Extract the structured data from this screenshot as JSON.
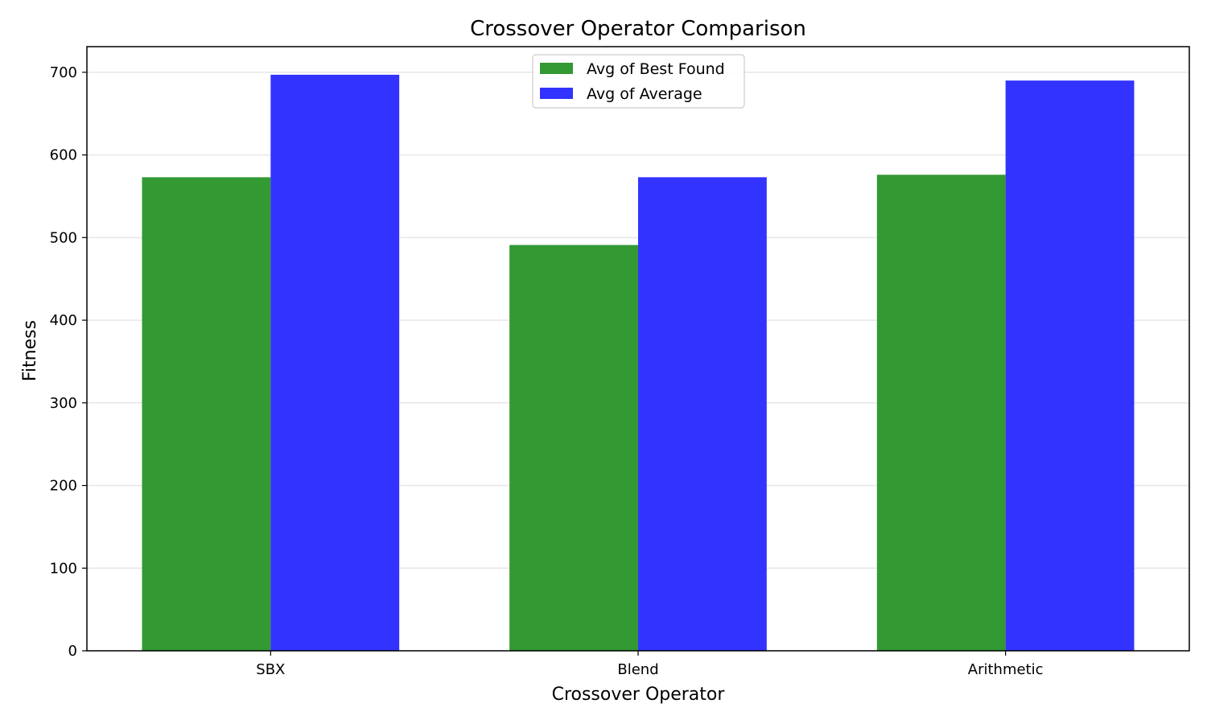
{
  "chart_data": {
    "type": "bar",
    "title": "Crossover Operator Comparison",
    "xlabel": "Crossover Operator",
    "ylabel": "Fitness",
    "categories": [
      "SBX",
      "Blend",
      "Arithmetic"
    ],
    "series": [
      {
        "name": "Avg of Best Found",
        "values": [
          573,
          491,
          576
        ],
        "color": "#339933"
      },
      {
        "name": "Avg of Average",
        "values": [
          697,
          573,
          690
        ],
        "color": "#3333ff"
      }
    ],
    "ylim": [
      0,
      731
    ],
    "yticks": [
      0,
      100,
      200,
      300,
      400,
      500,
      600,
      700
    ],
    "grid": "y",
    "legend_position": "top-center"
  }
}
